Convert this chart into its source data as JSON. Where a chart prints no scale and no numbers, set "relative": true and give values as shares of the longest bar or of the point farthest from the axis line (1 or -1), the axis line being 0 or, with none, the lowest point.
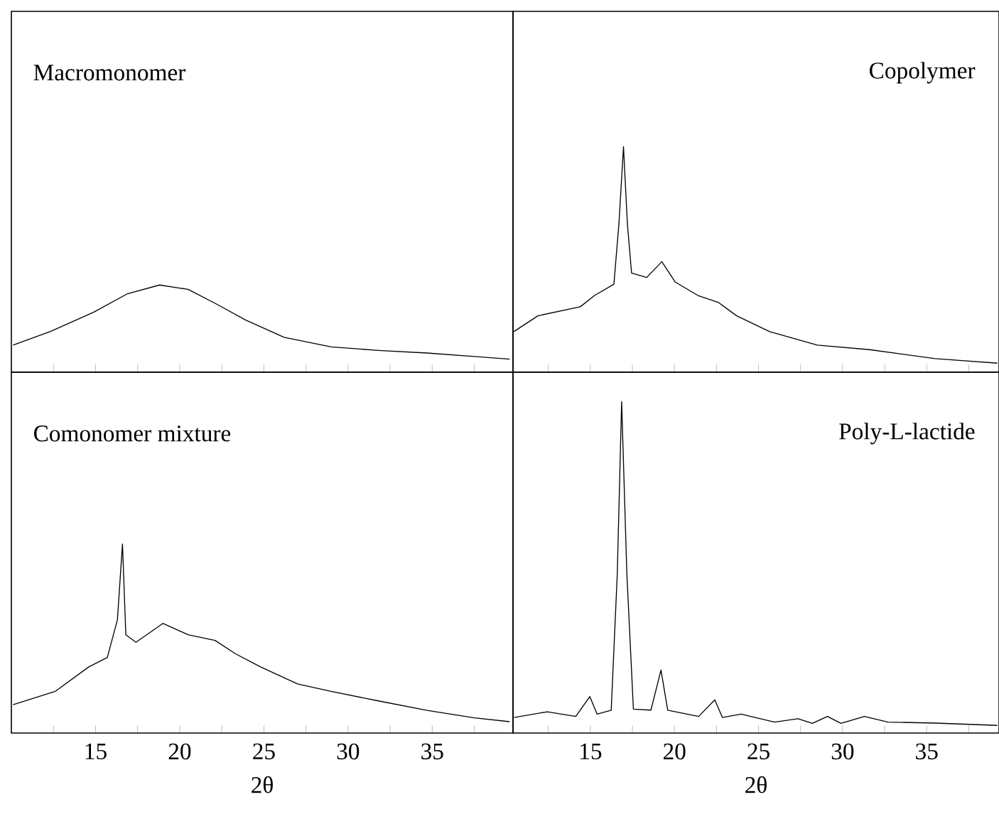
{
  "chart_data": [
    {
      "type": "line",
      "title": "Macromonomer",
      "relative": true,
      "color": "#000000",
      "xlim": [
        10,
        39.8
      ],
      "xticks": [
        {
          "value": 12.5,
          "label": null
        },
        15,
        {
          "value": 17.5,
          "label": null
        },
        20,
        {
          "value": 22.5,
          "label": null
        },
        25,
        {
          "value": 27.5,
          "label": null
        },
        30,
        {
          "value": 32.5,
          "label": null
        },
        35,
        {
          "value": 37.5,
          "label": null
        }
      ],
      "tick_labels": false,
      "x": [
        10.1,
        12.35,
        14.9,
        16.9,
        18.8,
        20.5,
        22.2,
        23.9,
        26.2,
        29.0,
        31.8,
        34.7,
        37.5,
        39.6
      ],
      "values": [
        0.31,
        0.47,
        0.69,
        0.9,
        1,
        0.95,
        0.78,
        0.6,
        0.4,
        0.29,
        0.25,
        0.22,
        0.18,
        0.15
      ]
    },
    {
      "type": "line",
      "title": "Copolymer",
      "relative": true,
      "color": "#000000",
      "xlim": [
        10.4,
        39.3
      ],
      "xticks": [
        {
          "value": 12.5,
          "label": null
        },
        15,
        {
          "value": 17.5,
          "label": null
        },
        20,
        {
          "value": 22.5,
          "label": null
        },
        25,
        {
          "value": 27.5,
          "label": null
        },
        30,
        {
          "value": 32.5,
          "label": null
        },
        35,
        {
          "value": 37.5,
          "label": null
        }
      ],
      "tick_labels": false,
      "x": [
        10.45,
        11.88,
        14.4,
        15.25,
        16.4,
        16.7,
        16.97,
        17.2,
        17.45,
        18.35,
        19.25,
        20.04,
        21.4,
        22.6,
        23.7,
        25.66,
        28.5,
        31.6,
        35.5,
        39.2
      ],
      "values": [
        0.18,
        0.25,
        0.29,
        0.34,
        0.39,
        0.66,
        1,
        0.66,
        0.44,
        0.42,
        0.49,
        0.4,
        0.34,
        0.31,
        0.25,
        0.18,
        0.12,
        0.1,
        0.06,
        0.04
      ]
    },
    {
      "type": "line",
      "title": "Comonomer mixture",
      "xlabel": "2θ",
      "relative": true,
      "color": "#000000",
      "xlim": [
        10,
        39.8
      ],
      "xticks": [
        {
          "value": 12.5,
          "label": null
        },
        15,
        {
          "value": 17.5,
          "label": null
        },
        20,
        {
          "value": 22.5,
          "label": null
        },
        25,
        {
          "value": 27.5,
          "label": null
        },
        30,
        {
          "value": 32.5,
          "label": null
        },
        35,
        {
          "value": 37.5,
          "label": null
        }
      ],
      "tick_labels": "x",
      "x": [
        10.1,
        12.6,
        14.6,
        15.7,
        16.3,
        16.6,
        16.8,
        17.4,
        19.0,
        20.5,
        22.1,
        23.3,
        24.8,
        27.0,
        29.0,
        31.8,
        34.7,
        37.5,
        39.6
      ],
      "values": [
        0.15,
        0.22,
        0.35,
        0.4,
        0.6,
        1,
        0.52,
        0.48,
        0.58,
        0.52,
        0.49,
        0.42,
        0.35,
        0.26,
        0.22,
        0.17,
        0.12,
        0.08,
        0.06
      ]
    },
    {
      "type": "line",
      "title": "Poly-L-lactide",
      "xlabel": "2θ",
      "relative": true,
      "color": "#000000",
      "xlim": [
        10.4,
        39.3
      ],
      "xticks": [
        {
          "value": 12.5,
          "label": null
        },
        15,
        {
          "value": 17.5,
          "label": null
        },
        20,
        {
          "value": 22.5,
          "label": null
        },
        25,
        {
          "value": 27.5,
          "label": null
        },
        30,
        {
          "value": 32.5,
          "label": null
        },
        35,
        {
          "value": 37.5,
          "label": null
        }
      ],
      "tick_labels": "x",
      "x": [
        10.47,
        12.44,
        14.13,
        14.97,
        15.4,
        16.24,
        16.6,
        16.86,
        17.17,
        17.56,
        18.6,
        19.2,
        19.6,
        21.44,
        22.4,
        22.85,
        23.97,
        25.95,
        27.35,
        28.2,
        29.1,
        29.9,
        31.3,
        32.7,
        35.5,
        39.2
      ],
      "values": [
        0.047,
        0.064,
        0.05,
        0.11,
        0.057,
        0.069,
        0.48,
        1,
        0.48,
        0.072,
        0.069,
        0.19,
        0.069,
        0.05,
        0.1,
        0.047,
        0.057,
        0.033,
        0.043,
        0.029,
        0.05,
        0.029,
        0.05,
        0.033,
        0.03,
        0.023
      ]
    }
  ]
}
